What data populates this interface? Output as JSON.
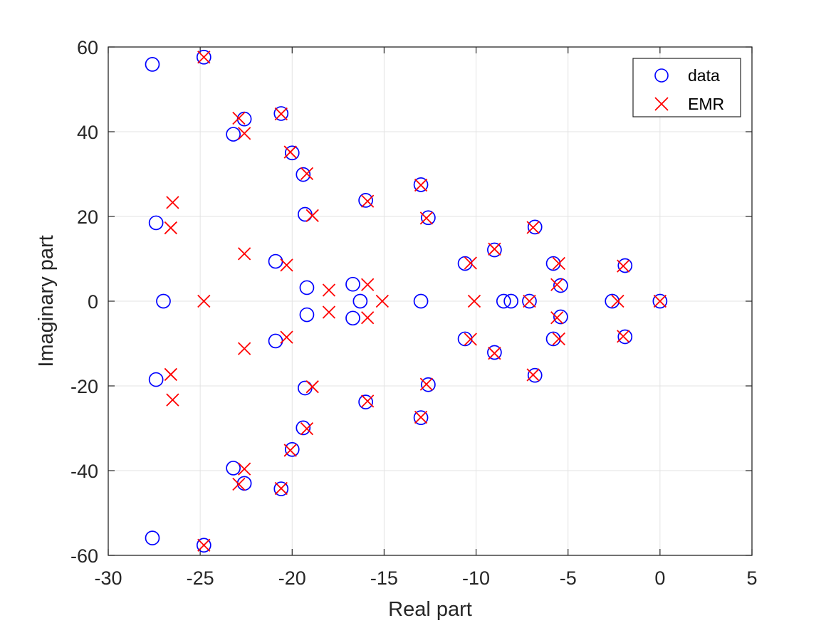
{
  "chart_data": {
    "type": "scatter",
    "xlabel": "Real part",
    "ylabel": "Imaginary part",
    "xlim": [
      -30,
      5
    ],
    "ylim": [
      -60,
      60
    ],
    "xticks": [
      -30,
      -25,
      -20,
      -15,
      -10,
      -5,
      0,
      5
    ],
    "yticks": [
      -60,
      -40,
      -20,
      0,
      20,
      40,
      60
    ],
    "xtick_labels": [
      "-30",
      "-25",
      "-20",
      "-15",
      "-10",
      "-5",
      "0",
      "5"
    ],
    "ytick_labels": [
      "-60",
      "-40",
      "-20",
      "0",
      "20",
      "40",
      "60"
    ],
    "grid": true,
    "legend_position": "top-right",
    "series": [
      {
        "name": "data",
        "marker": "circle",
        "color": "#0000ff",
        "points": [
          [
            -27.6,
            55.9
          ],
          [
            -27.6,
            -55.9
          ],
          [
            -24.8,
            57.6
          ],
          [
            -24.8,
            -57.6
          ],
          [
            -23.2,
            39.4
          ],
          [
            -23.2,
            -39.4
          ],
          [
            -22.6,
            43.0
          ],
          [
            -22.6,
            -43.0
          ],
          [
            -20.6,
            44.3
          ],
          [
            -20.6,
            -44.3
          ],
          [
            -20.0,
            35.0
          ],
          [
            -20.0,
            -35.0
          ],
          [
            -19.4,
            29.9
          ],
          [
            -19.4,
            -29.9
          ],
          [
            -19.3,
            20.5
          ],
          [
            -19.3,
            -20.5
          ],
          [
            -27.4,
            18.5
          ],
          [
            -27.4,
            -18.5
          ],
          [
            -27.0,
            0.0
          ],
          [
            -20.9,
            9.4
          ],
          [
            -20.9,
            -9.4
          ],
          [
            -19.2,
            3.2
          ],
          [
            -19.2,
            -3.2
          ],
          [
            -16.7,
            4.0
          ],
          [
            -16.7,
            -4.0
          ],
          [
            -16.3,
            0.0
          ],
          [
            -16.0,
            23.8
          ],
          [
            -16.0,
            -23.8
          ],
          [
            -13.0,
            27.5
          ],
          [
            -13.0,
            -27.5
          ],
          [
            -12.6,
            19.7
          ],
          [
            -12.6,
            -19.7
          ],
          [
            -13.0,
            0.0
          ],
          [
            -10.6,
            8.9
          ],
          [
            -10.6,
            -8.9
          ],
          [
            -9.0,
            12.1
          ],
          [
            -9.0,
            -12.1
          ],
          [
            -8.5,
            0.0
          ],
          [
            -8.1,
            0.0
          ],
          [
            -7.1,
            0.0
          ],
          [
            -6.8,
            17.5
          ],
          [
            -6.8,
            -17.5
          ],
          [
            -5.8,
            8.9
          ],
          [
            -5.8,
            -8.9
          ],
          [
            -5.4,
            3.7
          ],
          [
            -5.4,
            -3.7
          ],
          [
            -2.6,
            0.0
          ],
          [
            -1.9,
            8.4
          ],
          [
            -1.9,
            -8.4
          ],
          [
            0.0,
            0.0
          ]
        ]
      },
      {
        "name": "EMR",
        "marker": "x",
        "color": "#ff0000",
        "points": [
          [
            -24.8,
            57.6
          ],
          [
            -24.8,
            -57.6
          ],
          [
            -22.9,
            43.2
          ],
          [
            -22.9,
            -43.2
          ],
          [
            -22.6,
            39.6
          ],
          [
            -22.6,
            -39.6
          ],
          [
            -20.6,
            44.2
          ],
          [
            -20.6,
            -44.2
          ],
          [
            -20.1,
            35.2
          ],
          [
            -20.1,
            -35.2
          ],
          [
            -19.2,
            30.1
          ],
          [
            -19.2,
            -30.1
          ],
          [
            -18.9,
            20.2
          ],
          [
            -18.9,
            -20.2
          ],
          [
            -26.5,
            23.3
          ],
          [
            -26.5,
            -23.3
          ],
          [
            -26.6,
            17.3
          ],
          [
            -26.6,
            -17.3
          ],
          [
            -22.6,
            11.2
          ],
          [
            -22.6,
            -11.2
          ],
          [
            -24.8,
            0.0
          ],
          [
            -20.3,
            8.5
          ],
          [
            -20.3,
            -8.5
          ],
          [
            -18.0,
            2.6
          ],
          [
            -18.0,
            -2.6
          ],
          [
            -15.9,
            3.9
          ],
          [
            -15.9,
            -3.9
          ],
          [
            -15.1,
            0.0
          ],
          [
            -15.9,
            23.6
          ],
          [
            -15.9,
            -23.6
          ],
          [
            -13.0,
            27.4
          ],
          [
            -13.0,
            -27.4
          ],
          [
            -12.7,
            19.6
          ],
          [
            -12.7,
            -19.6
          ],
          [
            -10.3,
            9.0
          ],
          [
            -10.3,
            -9.0
          ],
          [
            -10.1,
            0.0
          ],
          [
            -9.0,
            12.3
          ],
          [
            -9.0,
            -12.3
          ],
          [
            -7.1,
            0.0
          ],
          [
            -6.9,
            17.4
          ],
          [
            -6.9,
            -17.4
          ],
          [
            -5.5,
            8.9
          ],
          [
            -5.5,
            -8.9
          ],
          [
            -5.6,
            3.9
          ],
          [
            -5.6,
            -3.9
          ],
          [
            -2.3,
            0.0
          ],
          [
            -2.0,
            8.3
          ],
          [
            -2.0,
            -8.3
          ],
          [
            0.0,
            0.0
          ]
        ]
      }
    ]
  }
}
